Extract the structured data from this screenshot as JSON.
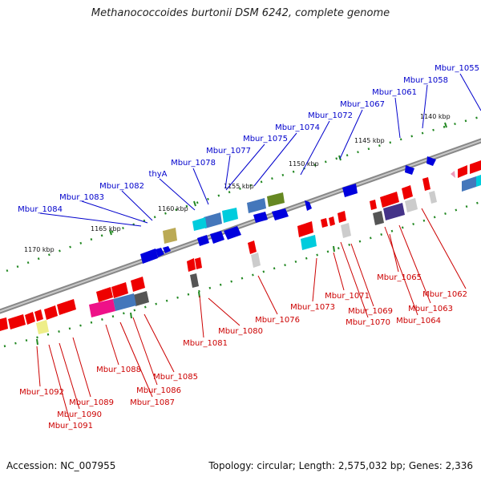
{
  "title": "Methanococcoides burtonii DSM 6242, complete genome",
  "footer": {
    "accession": "Accession: NC_007955",
    "topology": "Topology: circular; Length: 2,575,032 bp; Genes: 2,336"
  },
  "colors": {
    "backbone": "#888888",
    "tick_dot": "#228822",
    "label_top": "#0000cc",
    "label_bottom": "#cc0000",
    "line_top": "#0000cc",
    "line_bottom": "#cc0000"
  },
  "scale_labels": [
    "1140 kbp",
    "1145 kbp",
    "1150 kbp",
    "1155 kbp",
    "1160 kbp",
    "1165 kbp",
    "1170 kbp"
  ],
  "top_labels": [
    "Mbur_1055",
    "Mbur_1058",
    "Mbur_1061",
    "Mbur_1067",
    "Mbur_1072",
    "Mbur_1074",
    "Mbur_1075",
    "Mbur_1077",
    "Mbur_1078",
    "thyA",
    "Mbur_1082",
    "Mbur_1083",
    "Mbur_1084"
  ],
  "bottom_labels": [
    "Mbur_1062",
    "Mbur_1063",
    "Mbur_1064",
    "Mbur_1065",
    "Mbur_1069",
    "Mbur_1070",
    "Mbur_1071",
    "Mbur_1073",
    "Mbur_1076",
    "Mbur_1080",
    "Mbur_1081",
    "Mbur_1085",
    "Mbur_1086",
    "Mbur_1087",
    "Mbur_1088",
    "Mbur_1089",
    "Mbur_1090",
    "Mbur_1091",
    "Mbur_1092"
  ],
  "gene_colors": {
    "blue": "#0000dd",
    "red": "#ee0000",
    "cyan": "#00ccdd",
    "steel": "#4477bb",
    "olive": "#668822",
    "khaki": "#bbaa55",
    "yellow": "#eeee88",
    "magenta": "#ee1188",
    "purple": "#443388",
    "grey": "#888888",
    "lightgrey": "#cccccc",
    "darkgrey": "#555555",
    "pink": "#ee99bb"
  }
}
